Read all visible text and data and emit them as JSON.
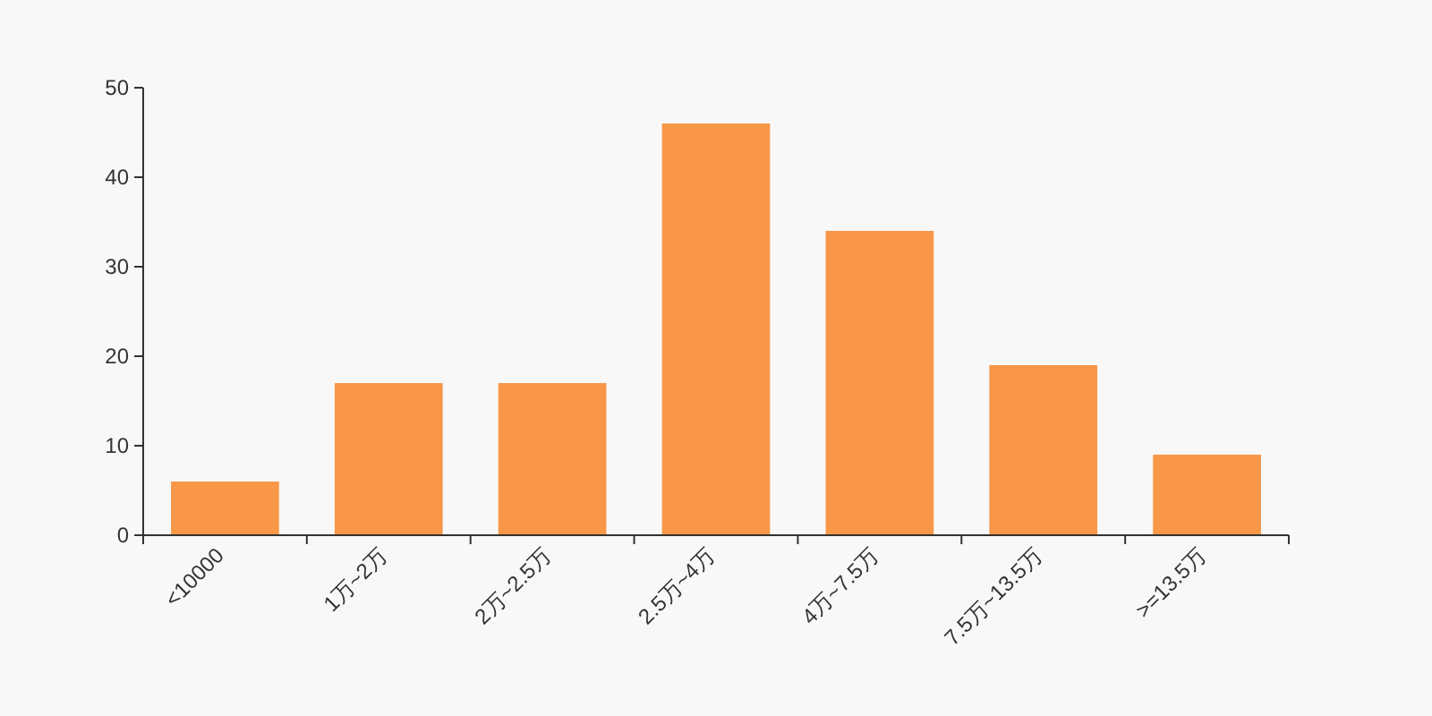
{
  "chart_data": {
    "type": "bar",
    "categories": [
      "<10000",
      "1万~2万",
      "2万~2.5万",
      "2.5万~4万",
      "4万~7.5万",
      "7.5万~13.5万",
      ">=13.5万"
    ],
    "values": [
      6,
      17,
      17,
      46,
      34,
      19,
      9
    ],
    "color": "#f89748",
    "ylim": [
      0,
      50
    ],
    "yticks": [
      0,
      10,
      20,
      30,
      40,
      50
    ]
  }
}
